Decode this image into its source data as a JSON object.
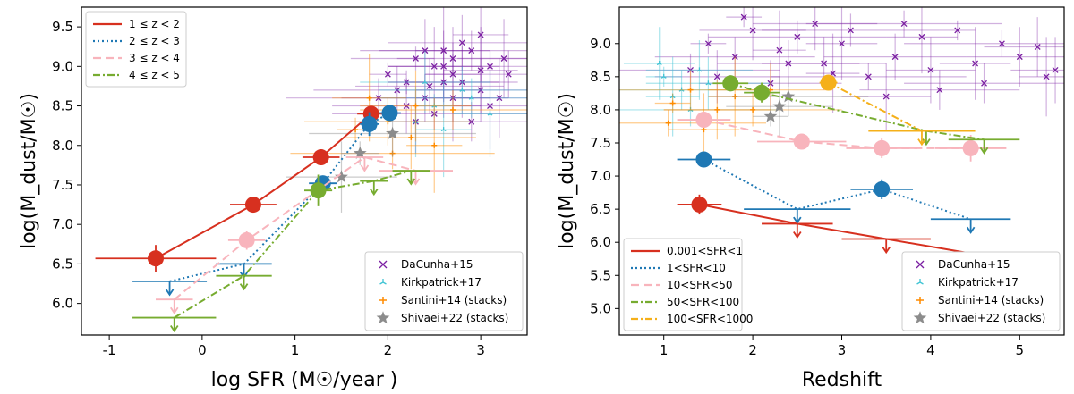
{
  "chart_data": [
    {
      "type": "scatter",
      "panel": "left",
      "xlabel": "log SFR (M☉/year )",
      "ylabel": "log(M_dust/M☉)",
      "xlim": [
        -1.3,
        3.5
      ],
      "ylim": [
        5.6,
        9.75
      ],
      "xticks": [
        "-1",
        "0",
        "1",
        "2",
        "3"
      ],
      "yticks": [
        "6.0",
        "6.5",
        "7.0",
        "7.5",
        "8.0",
        "8.5",
        "9.0",
        "9.5"
      ],
      "legend_lines": [
        {
          "label": "1 ≤ z < 2",
          "color": "#d7301f",
          "dash": ""
        },
        {
          "label": "2 ≤ z < 3",
          "color": "#1f78b4",
          "dash": "2,3"
        },
        {
          "label": "3 ≤ z < 4",
          "color": "#f8b4bc",
          "dash": "9,5"
        },
        {
          "label": "4 ≤ z < 5",
          "color": "#77ac30",
          "dash": "8,3,2,3"
        }
      ],
      "legend_markers": [
        {
          "label": "DaCunha+15",
          "marker": "x",
          "color": "#7b1fa2"
        },
        {
          "label": "Kirkpatrick+17",
          "marker": "tri",
          "color": "#40c4d4"
        },
        {
          "label": "Santini+14 (stacks)",
          "marker": "plus",
          "color": "#ff8c00"
        },
        {
          "label": "Shivaei+22 (stacks)",
          "marker": "star",
          "color": "#8c8c8c"
        }
      ],
      "series": [
        {
          "name": "1 ≤ z < 2",
          "color": "#d7301f",
          "dash": "",
          "points": [
            {
              "x": -0.5,
              "y": 6.57,
              "xerr": 0.65,
              "yerr": 0.17,
              "upper": false
            },
            {
              "x": 0.55,
              "y": 7.25,
              "xerr": 0.25,
              "yerr": 0.1,
              "upper": false
            },
            {
              "x": 1.28,
              "y": 7.85,
              "xerr": 0.2,
              "yerr": 0.1,
              "upper": false
            },
            {
              "x": 1.82,
              "y": 8.4,
              "xerr": 0.15,
              "yerr": 0.1,
              "upper": false
            }
          ]
        },
        {
          "name": "2 ≤ z < 3",
          "color": "#1f78b4",
          "dash": "2,3",
          "points": [
            {
              "x": -0.35,
              "y": 6.28,
              "xerr": 0.4,
              "yerr": 0,
              "upper": true
            },
            {
              "x": 0.45,
              "y": 6.5,
              "xerr": 0.3,
              "yerr": 0,
              "upper": true
            },
            {
              "x": 1.3,
              "y": 7.52,
              "xerr": 0.15,
              "yerr": 0.1,
              "upper": false
            },
            {
              "x": 1.8,
              "y": 8.27,
              "xerr": 0.1,
              "yerr": 0.15,
              "upper": false
            },
            {
              "x": 2.02,
              "y": 8.41,
              "xerr": 0.12,
              "yerr": 0.1,
              "upper": false
            }
          ]
        },
        {
          "name": "3 ≤ z < 4",
          "color": "#f8b4bc",
          "dash": "9,5",
          "points": [
            {
              "x": -0.3,
              "y": 6.05,
              "xerr": 0.2,
              "yerr": 0,
              "upper": true
            },
            {
              "x": 0.48,
              "y": 6.8,
              "xerr": 0.2,
              "yerr": 0.12,
              "upper": false
            },
            {
              "x": 1.75,
              "y": 7.85,
              "xerr": 0.2,
              "yerr": 0,
              "upper": true
            },
            {
              "x": 2.3,
              "y": 7.68,
              "xerr": 0.4,
              "yerr": 0,
              "upper": true
            }
          ]
        },
        {
          "name": "4 ≤ z < 5",
          "color": "#77ac30",
          "dash": "8,3,2,3",
          "points": [
            {
              "x": -0.3,
              "y": 5.82,
              "xerr": 0.45,
              "yerr": 0,
              "upper": true
            },
            {
              "x": 0.45,
              "y": 6.35,
              "xerr": 0.3,
              "yerr": 0,
              "upper": true
            },
            {
              "x": 1.25,
              "y": 7.43,
              "xerr": 0.15,
              "yerr": 0.2,
              "upper": false
            },
            {
              "x": 1.85,
              "y": 7.55,
              "xerr": 0.15,
              "yerr": 0,
              "upper": true
            },
            {
              "x": 2.25,
              "y": 7.68,
              "xerr": 0.2,
              "yerr": 0,
              "upper": true
            }
          ]
        }
      ],
      "scatter_datasets": {
        "DaCunha+15": {
          "color": "#7b1fa2",
          "marker": "x",
          "points": [
            [
              2.2,
              8.8
            ],
            [
              2.4,
              8.6
            ],
            [
              2.6,
              9.0
            ],
            [
              2.7,
              8.9
            ],
            [
              2.9,
              9.2
            ],
            [
              3.0,
              8.7
            ],
            [
              3.1,
              8.5
            ],
            [
              2.5,
              8.4
            ],
            [
              2.8,
              9.3
            ],
            [
              3.2,
              8.6
            ],
            [
              2.3,
              9.1
            ],
            [
              2.1,
              8.7
            ],
            [
              2.6,
              8.8
            ],
            [
              3.0,
              9.4
            ],
            [
              2.9,
              8.3
            ],
            [
              2.4,
              9.2
            ],
            [
              2.7,
              8.6
            ],
            [
              3.1,
              9.0
            ],
            [
              2.2,
              8.5
            ],
            [
              2.5,
              9.0
            ],
            [
              2.0,
              8.9
            ],
            [
              3.3,
              8.9
            ],
            [
              2.8,
              8.8
            ],
            [
              2.6,
              9.2
            ],
            [
              1.9,
              8.6
            ],
            [
              2.3,
              8.3
            ],
            [
              3.0,
              8.95
            ],
            [
              2.7,
              9.1
            ],
            [
              2.45,
              8.75
            ],
            [
              3.25,
              9.1
            ]
          ]
        },
        "Kirkpatrick+17": {
          "color": "#40c4d4",
          "marker": "tri",
          "points": [
            [
              2.5,
              8.5
            ],
            [
              2.8,
              8.7
            ],
            [
              2.3,
              8.3
            ],
            [
              2.6,
              8.2
            ],
            [
              2.9,
              8.6
            ],
            [
              2.4,
              8.8
            ],
            [
              3.1,
              8.4
            ]
          ]
        },
        "Santini+14 (stacks)": {
          "color": "#ff8c00",
          "marker": "plus",
          "points": [
            [
              1.65,
              8.2
            ],
            [
              2.0,
              8.3
            ],
            [
              2.3,
              8.5
            ],
            [
              2.5,
              8.0
            ],
            [
              2.7,
              8.45
            ],
            [
              2.25,
              8.1
            ],
            [
              1.8,
              8.6
            ],
            [
              2.05,
              7.9
            ]
          ]
        },
        "Shivaei+22 (stacks)": {
          "color": "#8c8c8c",
          "marker": "star",
          "points": [
            [
              1.7,
              7.9
            ],
            [
              2.05,
              8.15
            ],
            [
              1.5,
              7.6
            ]
          ]
        }
      }
    },
    {
      "type": "scatter",
      "panel": "right",
      "xlabel": "Redshift",
      "ylabel": "log(M_dust/M☉)",
      "xlim": [
        0.5,
        5.5
      ],
      "ylim": [
        4.6,
        9.55
      ],
      "xticks": [
        "1",
        "2",
        "3",
        "4",
        "5"
      ],
      "yticks": [
        "5.0",
        "5.5",
        "6.0",
        "6.5",
        "7.0",
        "7.5",
        "8.0",
        "8.5",
        "9.0"
      ],
      "legend_lines": [
        {
          "label": "0.001<SFR<1",
          "color": "#d7301f",
          "dash": ""
        },
        {
          "label": "1<SFR<10",
          "color": "#1f78b4",
          "dash": "2,3"
        },
        {
          "label": "10<SFR<50",
          "color": "#f8b4bc",
          "dash": "9,5"
        },
        {
          "label": "50<SFR<100",
          "color": "#77ac30",
          "dash": "8,3,2,3"
        },
        {
          "label": "100<SFR<1000",
          "color": "#f5b01a",
          "dash": "8,3,2,3"
        }
      ],
      "legend_markers": [
        {
          "label": "DaCunha+15",
          "marker": "x",
          "color": "#7b1fa2"
        },
        {
          "label": "Kirkpatrick+17",
          "marker": "tri",
          "color": "#40c4d4"
        },
        {
          "label": "Santini+14 (stacks)",
          "marker": "plus",
          "color": "#ff8c00"
        },
        {
          "label": "Shivaei+22 (stacks)",
          "marker": "star",
          "color": "#8c8c8c"
        }
      ],
      "series": [
        {
          "name": "0.001<SFR<1",
          "color": "#d7301f",
          "dash": "",
          "points": [
            {
              "x": 1.4,
              "y": 6.57,
              "xerr": 0.25,
              "yerr": 0.15,
              "upper": false
            },
            {
              "x": 2.5,
              "y": 6.28,
              "xerr": 0.4,
              "yerr": 0,
              "upper": true
            },
            {
              "x": 3.5,
              "y": 6.05,
              "xerr": 0.5,
              "yerr": 0,
              "upper": true
            },
            {
              "x": 4.5,
              "y": 5.82,
              "xerr": 0.4,
              "yerr": 0,
              "upper": true
            }
          ]
        },
        {
          "name": "1<SFR<10",
          "color": "#1f78b4",
          "dash": "2,3",
          "points": [
            {
              "x": 1.45,
              "y": 7.25,
              "xerr": 0.3,
              "yerr": 0.1,
              "upper": false
            },
            {
              "x": 2.5,
              "y": 6.5,
              "xerr": 0.6,
              "yerr": 0,
              "upper": true
            },
            {
              "x": 3.45,
              "y": 6.8,
              "xerr": 0.35,
              "yerr": 0.15,
              "upper": false
            },
            {
              "x": 4.45,
              "y": 6.35,
              "xerr": 0.45,
              "yerr": 0,
              "upper": true
            }
          ]
        },
        {
          "name": "10<SFR<50",
          "color": "#f8b4bc",
          "dash": "9,5",
          "points": [
            {
              "x": 1.45,
              "y": 7.85,
              "xerr": 0.3,
              "yerr": 0.1,
              "upper": false
            },
            {
              "x": 2.55,
              "y": 7.52,
              "xerr": 0.5,
              "yerr": 0.1,
              "upper": false
            },
            {
              "x": 3.45,
              "y": 7.42,
              "xerr": 0.4,
              "yerr": 0.15,
              "upper": false
            },
            {
              "x": 4.45,
              "y": 7.42,
              "xerr": 0.4,
              "yerr": 0.2,
              "upper": false
            }
          ]
        },
        {
          "name": "50<SFR<100",
          "color": "#77ac30",
          "dash": "8,3,2,3",
          "points": [
            {
              "x": 1.75,
              "y": 8.4,
              "xerr": 0.2,
              "yerr": 0.12,
              "upper": false
            },
            {
              "x": 2.1,
              "y": 8.26,
              "xerr": 0.2,
              "yerr": 0.15,
              "upper": false
            },
            {
              "x": 3.95,
              "y": 7.68,
              "xerr": 0.35,
              "yerr": 0,
              "upper": true
            },
            {
              "x": 4.6,
              "y": 7.55,
              "xerr": 0.4,
              "yerr": 0,
              "upper": true
            }
          ]
        },
        {
          "name": "100<SFR<1000",
          "color": "#f5b01a",
          "dash": "8,3,2,3",
          "points": [
            {
              "x": 2.85,
              "y": 8.41,
              "xerr": 0.1,
              "yerr": 0.1,
              "upper": false
            },
            {
              "x": 3.9,
              "y": 7.68,
              "xerr": 0.6,
              "yerr": 0,
              "upper": true
            }
          ]
        }
      ],
      "scatter_datasets": {
        "DaCunha+15": {
          "color": "#7b1fa2",
          "marker": "x",
          "points": [
            [
              1.5,
              9.0
            ],
            [
              1.8,
              8.8
            ],
            [
              2.0,
              9.2
            ],
            [
              2.3,
              8.9
            ],
            [
              2.5,
              9.1
            ],
            [
              2.8,
              8.7
            ],
            [
              3.0,
              9.0
            ],
            [
              3.3,
              8.5
            ],
            [
              3.6,
              8.8
            ],
            [
              4.0,
              8.6
            ],
            [
              4.3,
              9.2
            ],
            [
              4.6,
              8.4
            ],
            [
              5.0,
              8.8
            ],
            [
              5.3,
              8.5
            ],
            [
              1.3,
              8.6
            ],
            [
              2.7,
              9.3
            ],
            [
              3.9,
              9.1
            ],
            [
              4.8,
              9.0
            ],
            [
              2.2,
              8.4
            ],
            [
              3.5,
              8.2
            ],
            [
              1.9,
              9.4
            ],
            [
              4.1,
              8.3
            ],
            [
              5.2,
              8.95
            ],
            [
              2.9,
              8.55
            ],
            [
              3.1,
              9.2
            ],
            [
              1.6,
              8.5
            ],
            [
              4.5,
              8.7
            ],
            [
              3.7,
              9.3
            ],
            [
              2.4,
              8.7
            ],
            [
              5.4,
              8.6
            ]
          ]
        },
        "Kirkpatrick+17": {
          "color": "#40c4d4",
          "marker": "tri",
          "points": [
            [
              1.0,
              8.5
            ],
            [
              1.2,
              8.3
            ],
            [
              1.4,
              8.6
            ],
            [
              1.1,
              8.2
            ],
            [
              1.3,
              8.0
            ],
            [
              1.5,
              8.4
            ],
            [
              0.95,
              8.7
            ]
          ]
        },
        "Santini+14 (stacks)": {
          "color": "#ff8c00",
          "marker": "plus",
          "points": [
            [
              1.1,
              8.1
            ],
            [
              1.3,
              8.3
            ],
            [
              1.6,
              8.0
            ],
            [
              1.8,
              8.2
            ],
            [
              2.0,
              8.0
            ],
            [
              2.2,
              8.3
            ],
            [
              1.45,
              7.7
            ],
            [
              1.05,
              7.8
            ]
          ]
        },
        "Shivaei+22 (stacks)": {
          "color": "#8c8c8c",
          "marker": "star",
          "points": [
            [
              2.2,
              7.9
            ],
            [
              2.4,
              8.2
            ],
            [
              2.3,
              8.05
            ]
          ]
        }
      }
    }
  ]
}
